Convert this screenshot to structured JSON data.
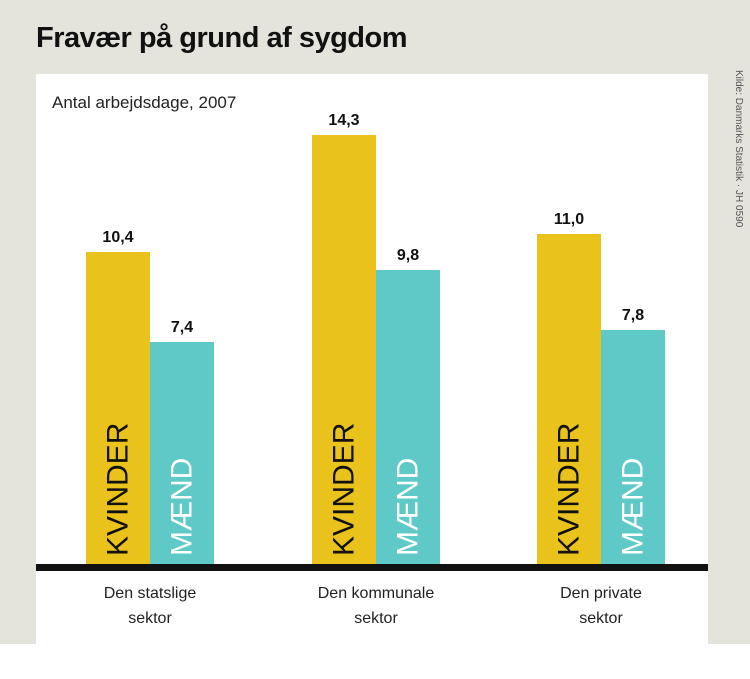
{
  "header": {
    "title": "Fravær på grund af sygdom",
    "source": "Kilde: Danmarks Statistik · JH 0590"
  },
  "colors": {
    "kvinder": "#e9c31b",
    "maend": "#5ec9c6",
    "baseline": "#111111",
    "background": "#e5e4dc"
  },
  "chart_data": {
    "type": "bar",
    "title": "Fravær på grund af sygdom",
    "subtitle": "Antal arbejdsdage, 2007",
    "categories": [
      [
        "Den statslige",
        "sektor"
      ],
      [
        "Den kommunale",
        "sektor"
      ],
      [
        "Den private",
        "sektor"
      ]
    ],
    "series": [
      {
        "name": "KVINDER",
        "values": [
          10.4,
          14.3,
          11.0
        ],
        "labels": [
          "10,4",
          "14,3",
          "11,0"
        ]
      },
      {
        "name": "MÆND",
        "values": [
          7.4,
          9.8,
          7.8
        ],
        "labels": [
          "7,4",
          "9,8",
          "7,8"
        ]
      }
    ],
    "ylim": [
      0,
      16
    ],
    "grid": false,
    "legend": "inside-bars",
    "xlabel": "",
    "ylabel": ""
  }
}
